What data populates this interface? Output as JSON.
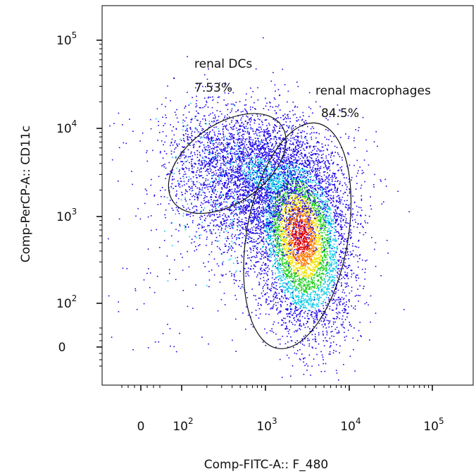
{
  "chart_data": {
    "type": "scatter",
    "xlabel": "Comp-FITC-A:: F_480",
    "ylabel": "Comp-PerCP-A:: CD11c",
    "x_scale": "biexponential",
    "y_scale": "biexponential",
    "x_ticks": [
      {
        "value": 0,
        "label": "0"
      },
      {
        "value": 100,
        "base": "10",
        "exp": "2"
      },
      {
        "value": 1000,
        "base": "10",
        "exp": "3"
      },
      {
        "value": 10000,
        "base": "10",
        "exp": "4"
      },
      {
        "value": 100000,
        "base": "10",
        "exp": "5"
      }
    ],
    "y_ticks": [
      {
        "value": 0,
        "label": "0"
      },
      {
        "value": 100,
        "base": "10",
        "exp": "2"
      },
      {
        "value": 1000,
        "base": "10",
        "exp": "3"
      },
      {
        "value": 10000,
        "base": "10",
        "exp": "4"
      },
      {
        "value": 100000,
        "base": "10",
        "exp": "5"
      }
    ],
    "gates": [
      {
        "name": "renal DCs",
        "percent": "7.53%",
        "center": [
          350,
          4000
        ]
      },
      {
        "name": "renal macrophages",
        "percent": "84.5%",
        "center": [
          2400,
          600
        ]
      }
    ],
    "populations": [
      {
        "center": [
          2600,
          600
        ],
        "spread": "dense core"
      },
      {
        "center": [
          900,
          4500
        ],
        "spread": "secondary cluster"
      }
    ],
    "density_colors": [
      "#1a00e6",
      "#00c8e6",
      "#20d020",
      "#f0e000",
      "#ff7a00",
      "#e00000"
    ],
    "grid": false,
    "legend": "none"
  }
}
